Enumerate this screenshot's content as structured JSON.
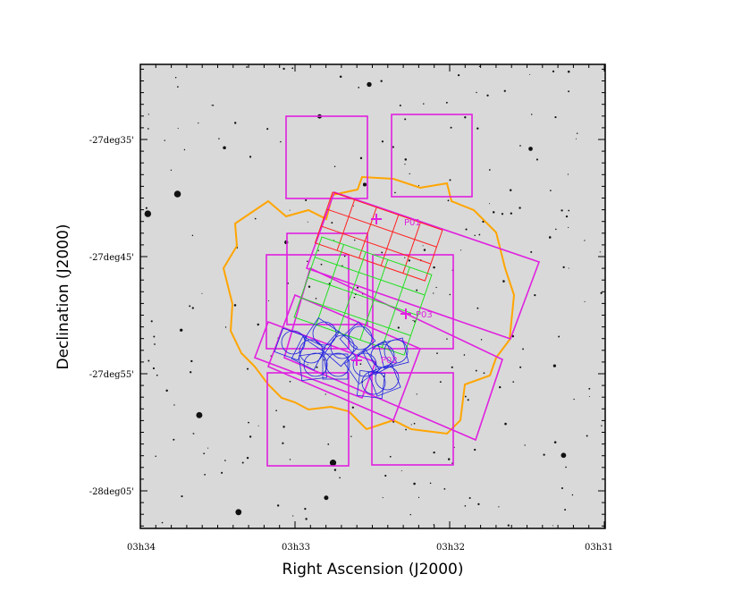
{
  "axes": {
    "x_label": "Right Ascension (J2000)",
    "y_label": "Declination (J2000)",
    "x_ticks": [
      "03h34",
      "03h33",
      "03h32",
      "03h31"
    ],
    "y_ticks": [
      "-27deg35'",
      "-27deg45'",
      "-27deg55'",
      "-28deg05'"
    ]
  },
  "regions": [
    {
      "label": "P01"
    },
    {
      "label": "P03"
    },
    {
      "label": "P02"
    }
  ]
}
